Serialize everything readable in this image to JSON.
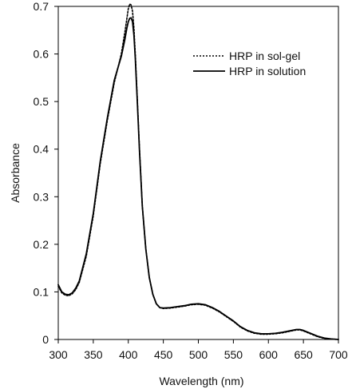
{
  "chart_data": {
    "type": "line",
    "xlabel": "Wavelength  (nm)",
    "ylabel": "Absorbance",
    "xlim": [
      300,
      700
    ],
    "ylim": [
      0,
      0.7
    ],
    "xticks": [
      300,
      350,
      400,
      450,
      500,
      550,
      600,
      650,
      700
    ],
    "yticks": [
      0,
      0.1,
      0.2,
      0.3,
      0.4,
      0.5,
      0.6,
      0.7
    ],
    "ytick_labels": [
      "0",
      "0.1",
      "0.2",
      "0.3",
      "0.4",
      "0.5",
      "0.6",
      "0.7"
    ],
    "grid": false,
    "legend_position": "top-right",
    "series": [
      {
        "name": "HRP in sol-gel",
        "style": "dotted",
        "color": "#000000",
        "x": [
          300,
          305,
          310,
          315,
          320,
          325,
          330,
          340,
          350,
          360,
          370,
          380,
          390,
          395,
          398,
          400,
          402,
          404,
          406,
          408,
          410,
          413,
          416,
          420,
          425,
          430,
          435,
          440,
          445,
          450,
          460,
          470,
          480,
          490,
          500,
          510,
          520,
          530,
          540,
          550,
          560,
          570,
          580,
          590,
          600,
          610,
          620,
          630,
          640,
          645,
          650,
          660,
          670,
          680,
          690,
          700
        ],
        "y": [
          0.112,
          0.098,
          0.093,
          0.092,
          0.096,
          0.105,
          0.12,
          0.175,
          0.26,
          0.37,
          0.46,
          0.54,
          0.6,
          0.645,
          0.675,
          0.695,
          0.705,
          0.703,
          0.69,
          0.655,
          0.6,
          0.5,
          0.4,
          0.28,
          0.19,
          0.13,
          0.095,
          0.075,
          0.067,
          0.065,
          0.066,
          0.068,
          0.07,
          0.073,
          0.074,
          0.072,
          0.066,
          0.058,
          0.048,
          0.038,
          0.026,
          0.018,
          0.013,
          0.011,
          0.011,
          0.012,
          0.014,
          0.017,
          0.02,
          0.02,
          0.018,
          0.012,
          0.006,
          0.002,
          0.001,
          0.0
        ]
      },
      {
        "name": "HRP in solution",
        "style": "solid",
        "color": "#000000",
        "x": [
          300,
          305,
          310,
          315,
          320,
          325,
          330,
          340,
          350,
          360,
          370,
          380,
          390,
          395,
          398,
          400,
          402,
          404,
          406,
          408,
          410,
          413,
          416,
          420,
          425,
          430,
          435,
          440,
          445,
          450,
          460,
          470,
          480,
          490,
          500,
          510,
          520,
          530,
          540,
          550,
          560,
          570,
          580,
          590,
          600,
          610,
          620,
          630,
          640,
          645,
          650,
          660,
          670,
          680,
          690,
          700
        ],
        "y": [
          0.115,
          0.1,
          0.095,
          0.094,
          0.098,
          0.108,
          0.123,
          0.18,
          0.265,
          0.375,
          0.465,
          0.545,
          0.595,
          0.63,
          0.655,
          0.668,
          0.675,
          0.676,
          0.668,
          0.64,
          0.59,
          0.495,
          0.395,
          0.28,
          0.19,
          0.13,
          0.095,
          0.075,
          0.067,
          0.066,
          0.067,
          0.069,
          0.071,
          0.074,
          0.075,
          0.073,
          0.067,
          0.059,
          0.049,
          0.039,
          0.027,
          0.019,
          0.014,
          0.012,
          0.012,
          0.013,
          0.015,
          0.018,
          0.021,
          0.021,
          0.019,
          0.013,
          0.007,
          0.003,
          0.001,
          0.0
        ]
      }
    ]
  }
}
